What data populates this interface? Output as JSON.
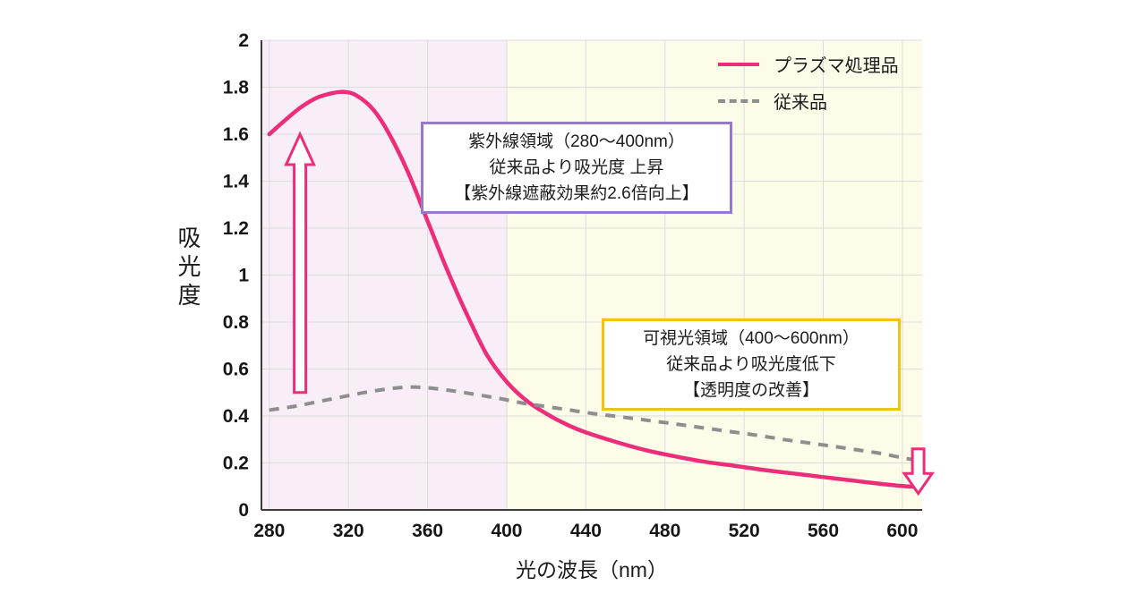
{
  "page": {
    "background": "#ffffff"
  },
  "chart_data": {
    "type": "line",
    "title": "",
    "xlabel": "光の波長（nm）",
    "ylabel": "吸光度",
    "xlim": [
      276,
      610
    ],
    "ylim": [
      0,
      2
    ],
    "x_ticks": [
      280,
      320,
      360,
      400,
      440,
      480,
      520,
      560,
      600
    ],
    "y_ticks": [
      0,
      0.2,
      0.4,
      0.6,
      0.8,
      1,
      1.2,
      1.4,
      1.6,
      1.8,
      2
    ],
    "grid": true,
    "legend_position": "top-right",
    "regions": [
      {
        "name": "uv-region",
        "x_from": 276,
        "x_to": 400,
        "color": "#f8eef7"
      },
      {
        "name": "visible-region",
        "x_from": 400,
        "x_to": 610,
        "color": "#fdfce9"
      }
    ],
    "series": [
      {
        "name": "プラズマ処理品",
        "color": "#ed2d79",
        "style": "solid",
        "width": 4.5,
        "points": [
          [
            280,
            1.6
          ],
          [
            288,
            1.66
          ],
          [
            296,
            1.715
          ],
          [
            304,
            1.755
          ],
          [
            312,
            1.775
          ],
          [
            318,
            1.78
          ],
          [
            324,
            1.765
          ],
          [
            332,
            1.71
          ],
          [
            340,
            1.61
          ],
          [
            350,
            1.44
          ],
          [
            360,
            1.23
          ],
          [
            370,
            1.02
          ],
          [
            380,
            0.83
          ],
          [
            390,
            0.66
          ],
          [
            400,
            0.545
          ],
          [
            410,
            0.465
          ],
          [
            420,
            0.41
          ],
          [
            430,
            0.365
          ],
          [
            440,
            0.33
          ],
          [
            455,
            0.29
          ],
          [
            470,
            0.255
          ],
          [
            485,
            0.228
          ],
          [
            500,
            0.205
          ],
          [
            515,
            0.188
          ],
          [
            530,
            0.17
          ],
          [
            545,
            0.155
          ],
          [
            560,
            0.14
          ],
          [
            575,
            0.125
          ],
          [
            590,
            0.11
          ],
          [
            600,
            0.102
          ],
          [
            606,
            0.098
          ]
        ]
      },
      {
        "name": "従来品",
        "color": "#8e8e8e",
        "style": "dashed",
        "width": 4,
        "points": [
          [
            280,
            0.425
          ],
          [
            292,
            0.44
          ],
          [
            304,
            0.46
          ],
          [
            316,
            0.48
          ],
          [
            328,
            0.5
          ],
          [
            340,
            0.515
          ],
          [
            350,
            0.523
          ],
          [
            360,
            0.52
          ],
          [
            372,
            0.508
          ],
          [
            384,
            0.492
          ],
          [
            396,
            0.475
          ],
          [
            408,
            0.455
          ],
          [
            420,
            0.44
          ],
          [
            432,
            0.425
          ],
          [
            444,
            0.41
          ],
          [
            456,
            0.398
          ],
          [
            468,
            0.385
          ],
          [
            480,
            0.372
          ],
          [
            492,
            0.358
          ],
          [
            504,
            0.344
          ],
          [
            516,
            0.33
          ],
          [
            528,
            0.316
          ],
          [
            540,
            0.3
          ],
          [
            552,
            0.286
          ],
          [
            564,
            0.272
          ],
          [
            576,
            0.257
          ],
          [
            588,
            0.242
          ],
          [
            600,
            0.222
          ],
          [
            606,
            0.213
          ]
        ]
      }
    ],
    "arrows": [
      {
        "direction": "up",
        "x": 295.5,
        "y_from": 0.5,
        "y_to": 1.6,
        "color": "#ed2d79"
      },
      {
        "direction": "down",
        "x": 608,
        "y_from": 0.26,
        "y_to": 0.07,
        "color": "#ed2d79"
      }
    ]
  },
  "annotations": {
    "uv_box": {
      "border_color": "#9678cd",
      "lines": [
        "紫外線領域（280〜400nm）",
        "従来品より吸光度 上昇",
        "【紫外線遮蔽効果約2.6倍向上】"
      ]
    },
    "visible_box": {
      "border_color": "#f0c316",
      "lines": [
        "可視光領域（400〜600nm）",
        "従来品より吸光度低下",
        "【透明度の改善】"
      ]
    }
  }
}
